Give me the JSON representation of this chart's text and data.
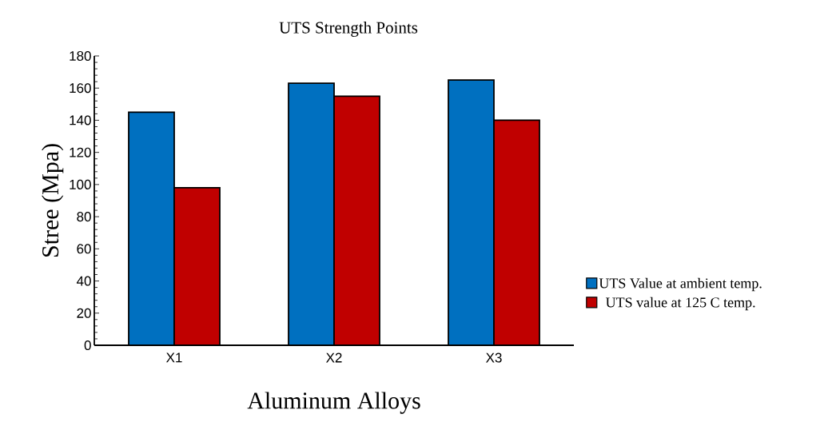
{
  "chart_data": {
    "type": "bar",
    "title": "UTS Strength Points",
    "xlabel": "Aluminum Alloys",
    "ylabel": "Stree (Mpa)",
    "categories": [
      "X1",
      "X2",
      "X3"
    ],
    "series": [
      {
        "name": "UTS Value at ambient temp.",
        "color": "#0070c0",
        "values": [
          145,
          163,
          165
        ]
      },
      {
        "name": "UTS value at 125 C temp.",
        "color": "#c00000",
        "values": [
          98,
          155,
          140
        ]
      }
    ],
    "ylim": [
      0,
      180
    ],
    "yticks": [
      0,
      20,
      40,
      60,
      80,
      100,
      120,
      140,
      160,
      180
    ],
    "grid": false,
    "legend": "right"
  }
}
